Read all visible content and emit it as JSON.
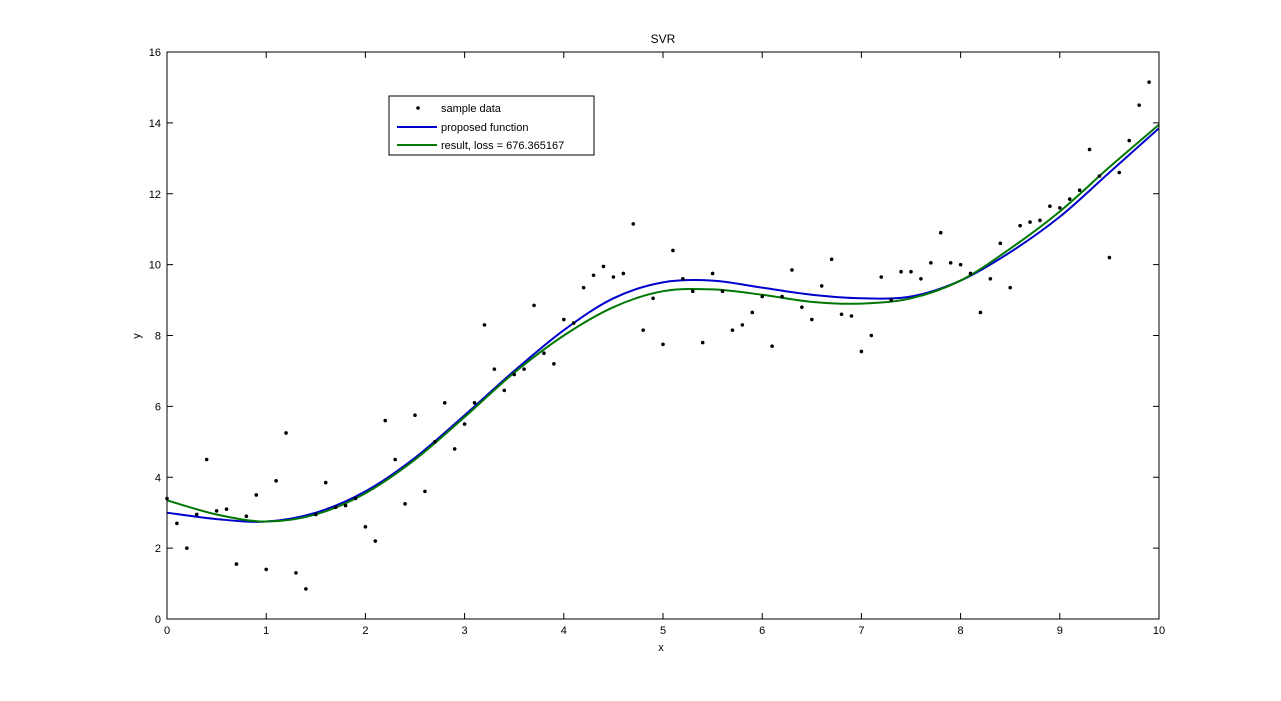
{
  "chart_data": {
    "type": "scatter+line",
    "title": "SVR",
    "xlabel": "x",
    "ylabel": "y",
    "xlim": [
      0,
      10
    ],
    "ylim": [
      0,
      16
    ],
    "xticks": [
      0,
      1,
      2,
      3,
      4,
      5,
      6,
      7,
      8,
      9,
      10
    ],
    "yticks": [
      0,
      2,
      4,
      6,
      8,
      10,
      12,
      14,
      16
    ],
    "grid": false,
    "legend_position": "upper-left",
    "series": [
      {
        "name": "sample data",
        "kind": "points",
        "color": "#000000",
        "points": [
          [
            0.0,
            3.4
          ],
          [
            0.1,
            2.7
          ],
          [
            0.2,
            2.0
          ],
          [
            0.3,
            2.95
          ],
          [
            0.4,
            4.5
          ],
          [
            0.5,
            3.05
          ],
          [
            0.6,
            3.1
          ],
          [
            0.7,
            1.55
          ],
          [
            0.8,
            2.9
          ],
          [
            0.9,
            3.5
          ],
          [
            1.0,
            1.4
          ],
          [
            1.1,
            3.9
          ],
          [
            1.2,
            5.25
          ],
          [
            1.3,
            1.3
          ],
          [
            1.4,
            0.85
          ],
          [
            1.5,
            2.95
          ],
          [
            1.6,
            3.85
          ],
          [
            1.7,
            3.15
          ],
          [
            1.8,
            3.2
          ],
          [
            1.9,
            3.4
          ],
          [
            2.0,
            2.6
          ],
          [
            2.1,
            2.2
          ],
          [
            2.2,
            5.6
          ],
          [
            2.3,
            4.5
          ],
          [
            2.4,
            3.25
          ],
          [
            2.5,
            5.75
          ],
          [
            2.6,
            3.6
          ],
          [
            2.7,
            5.0
          ],
          [
            2.8,
            6.1
          ],
          [
            2.9,
            4.8
          ],
          [
            3.0,
            5.5
          ],
          [
            3.1,
            6.1
          ],
          [
            3.2,
            8.3
          ],
          [
            3.3,
            7.05
          ],
          [
            3.4,
            6.45
          ],
          [
            3.5,
            6.9
          ],
          [
            3.6,
            7.05
          ],
          [
            3.7,
            8.85
          ],
          [
            3.8,
            7.5
          ],
          [
            3.9,
            7.2
          ],
          [
            4.0,
            8.45
          ],
          [
            4.1,
            8.35
          ],
          [
            4.2,
            9.35
          ],
          [
            4.3,
            9.7
          ],
          [
            4.4,
            9.95
          ],
          [
            4.5,
            9.65
          ],
          [
            4.6,
            9.75
          ],
          [
            4.7,
            11.15
          ],
          [
            4.8,
            8.15
          ],
          [
            4.9,
            9.05
          ],
          [
            5.0,
            7.75
          ],
          [
            5.1,
            10.4
          ],
          [
            5.2,
            9.6
          ],
          [
            5.3,
            9.25
          ],
          [
            5.4,
            7.8
          ],
          [
            5.5,
            9.75
          ],
          [
            5.6,
            9.25
          ],
          [
            5.7,
            8.15
          ],
          [
            5.8,
            8.3
          ],
          [
            5.9,
            8.65
          ],
          [
            6.0,
            9.1
          ],
          [
            6.1,
            7.7
          ],
          [
            6.2,
            9.1
          ],
          [
            6.3,
            9.85
          ],
          [
            6.4,
            8.8
          ],
          [
            6.5,
            8.45
          ],
          [
            6.6,
            9.4
          ],
          [
            6.7,
            10.15
          ],
          [
            6.8,
            8.6
          ],
          [
            6.9,
            8.55
          ],
          [
            7.0,
            7.55
          ],
          [
            7.1,
            8.0
          ],
          [
            7.2,
            9.65
          ],
          [
            7.3,
            9.0
          ],
          [
            7.4,
            9.8
          ],
          [
            7.5,
            9.8
          ],
          [
            7.6,
            9.6
          ],
          [
            7.7,
            10.05
          ],
          [
            7.8,
            10.9
          ],
          [
            7.9,
            10.05
          ],
          [
            8.0,
            10.0
          ],
          [
            8.1,
            9.75
          ],
          [
            8.2,
            8.65
          ],
          [
            8.3,
            9.6
          ],
          [
            8.4,
            10.6
          ],
          [
            8.5,
            9.35
          ],
          [
            8.6,
            11.1
          ],
          [
            8.7,
            11.2
          ],
          [
            8.8,
            11.25
          ],
          [
            8.9,
            11.65
          ],
          [
            9.0,
            11.6
          ],
          [
            9.1,
            11.85
          ],
          [
            9.2,
            12.1
          ],
          [
            9.3,
            13.25
          ],
          [
            9.4,
            12.5
          ],
          [
            9.5,
            10.2
          ],
          [
            9.6,
            12.6
          ],
          [
            9.7,
            13.5
          ],
          [
            9.8,
            14.5
          ],
          [
            9.9,
            15.15
          ]
        ]
      },
      {
        "name": "proposed function",
        "kind": "line",
        "color": "#0000cc",
        "points": [
          [
            0.0,
            3.0
          ],
          [
            0.5,
            2.82
          ],
          [
            1.0,
            2.75
          ],
          [
            1.5,
            3.0
          ],
          [
            2.0,
            3.6
          ],
          [
            2.5,
            4.55
          ],
          [
            3.0,
            5.75
          ],
          [
            3.5,
            7.0
          ],
          [
            4.0,
            8.15
          ],
          [
            4.5,
            9.05
          ],
          [
            5.0,
            9.5
          ],
          [
            5.5,
            9.55
          ],
          [
            6.0,
            9.35
          ],
          [
            6.5,
            9.15
          ],
          [
            7.0,
            9.05
          ],
          [
            7.5,
            9.1
          ],
          [
            8.0,
            9.55
          ],
          [
            8.5,
            10.35
          ],
          [
            9.0,
            11.35
          ],
          [
            9.5,
            12.6
          ],
          [
            10.0,
            13.85
          ]
        ]
      },
      {
        "name": "result, loss = 676.365167",
        "kind": "line",
        "color": "#007700",
        "points": [
          [
            0.0,
            3.35
          ],
          [
            0.5,
            2.95
          ],
          [
            1.0,
            2.75
          ],
          [
            1.5,
            2.95
          ],
          [
            2.0,
            3.55
          ],
          [
            2.5,
            4.5
          ],
          [
            3.0,
            5.7
          ],
          [
            3.5,
            6.95
          ],
          [
            4.0,
            8.0
          ],
          [
            4.5,
            8.8
          ],
          [
            5.0,
            9.25
          ],
          [
            5.5,
            9.3
          ],
          [
            6.0,
            9.15
          ],
          [
            6.5,
            8.95
          ],
          [
            7.0,
            8.9
          ],
          [
            7.5,
            9.05
          ],
          [
            8.0,
            9.55
          ],
          [
            8.5,
            10.45
          ],
          [
            9.0,
            11.5
          ],
          [
            9.5,
            12.75
          ],
          [
            10.0,
            13.95
          ]
        ]
      }
    ]
  }
}
